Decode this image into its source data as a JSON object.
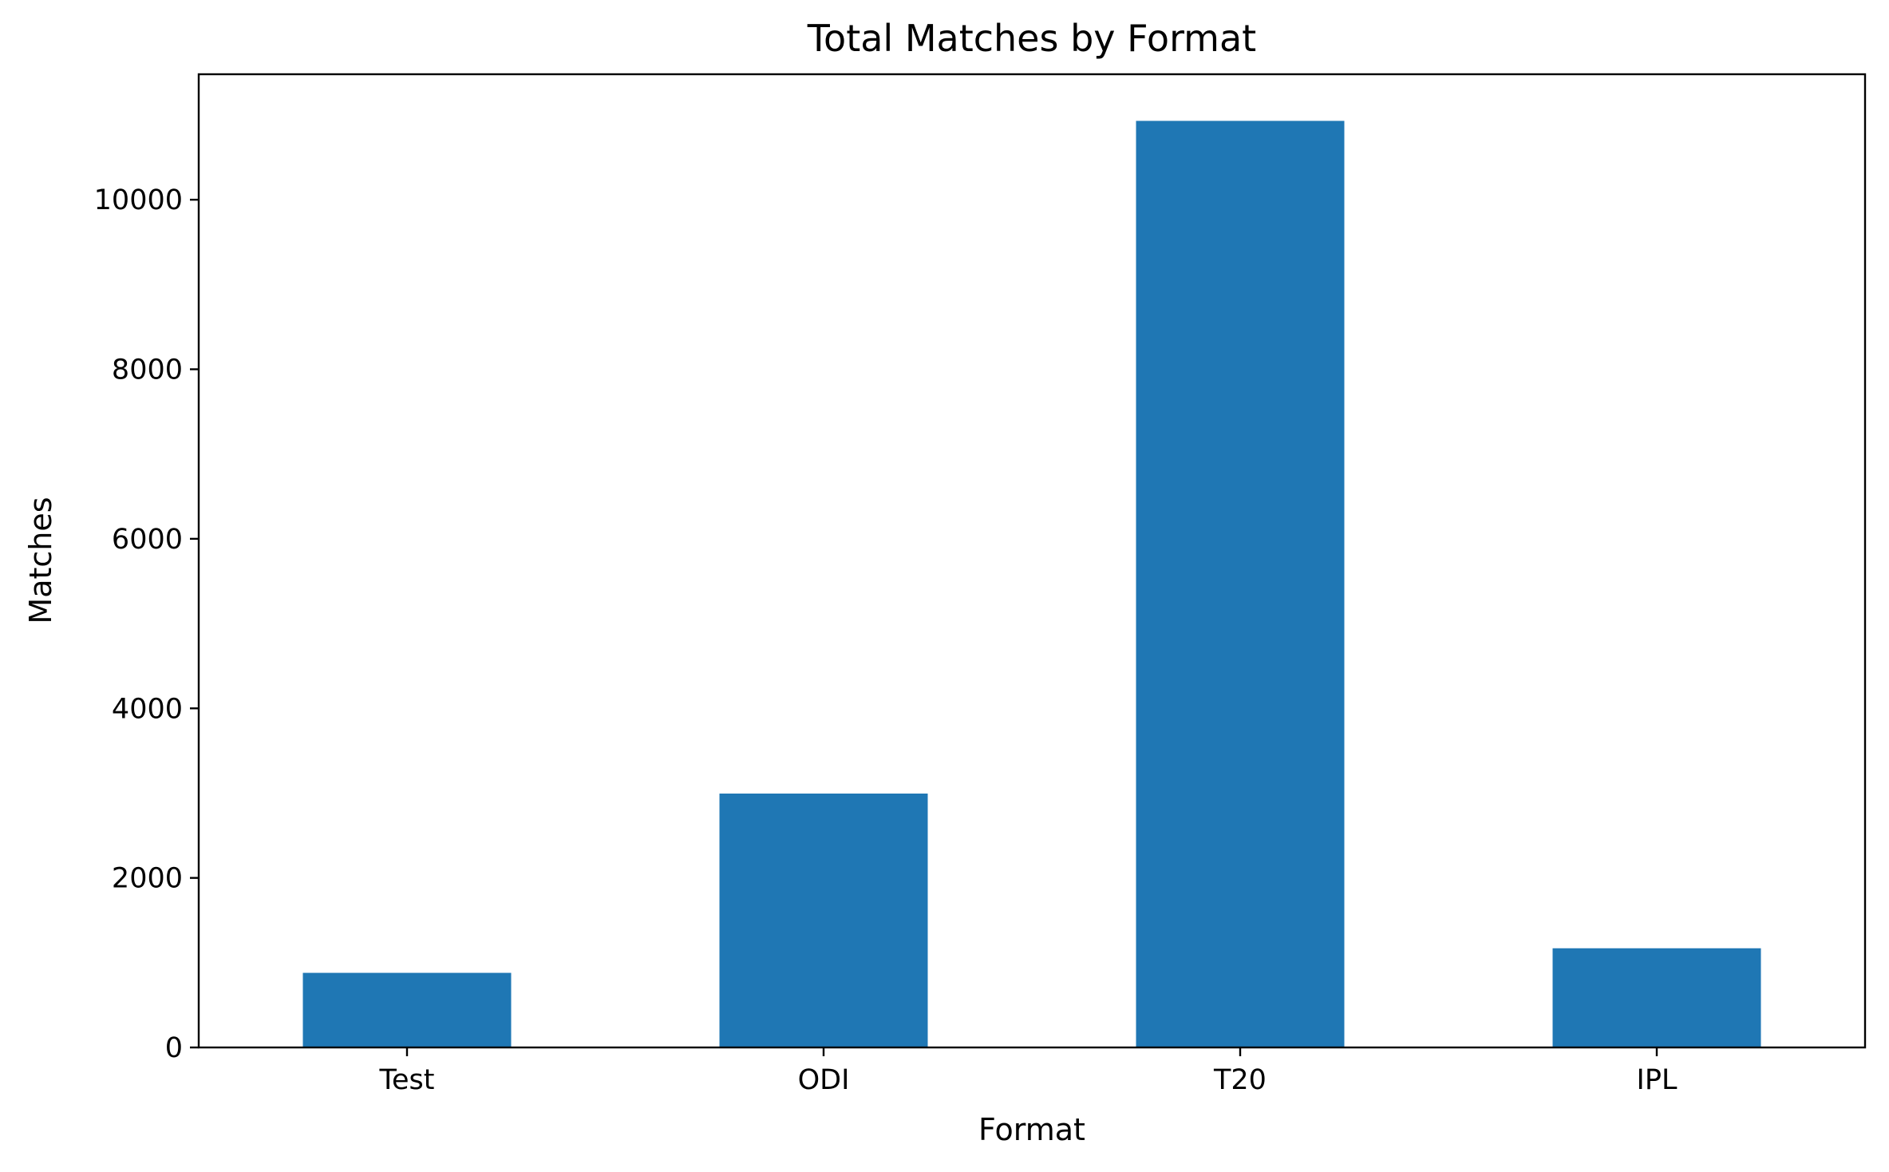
{
  "chart_data": {
    "type": "bar",
    "title": "Total Matches by Format",
    "xlabel": "Format",
    "ylabel": "Matches",
    "categories": [
      "Test",
      "ODI",
      "T20",
      "IPL"
    ],
    "values": [
      880,
      2995,
      10930,
      1170
    ],
    "ylim": [
      0,
      11480
    ],
    "yticks": [
      0,
      2000,
      4000,
      6000,
      8000,
      10000
    ],
    "bar_color": "#1f77b4",
    "grid": false,
    "legend": "none"
  }
}
